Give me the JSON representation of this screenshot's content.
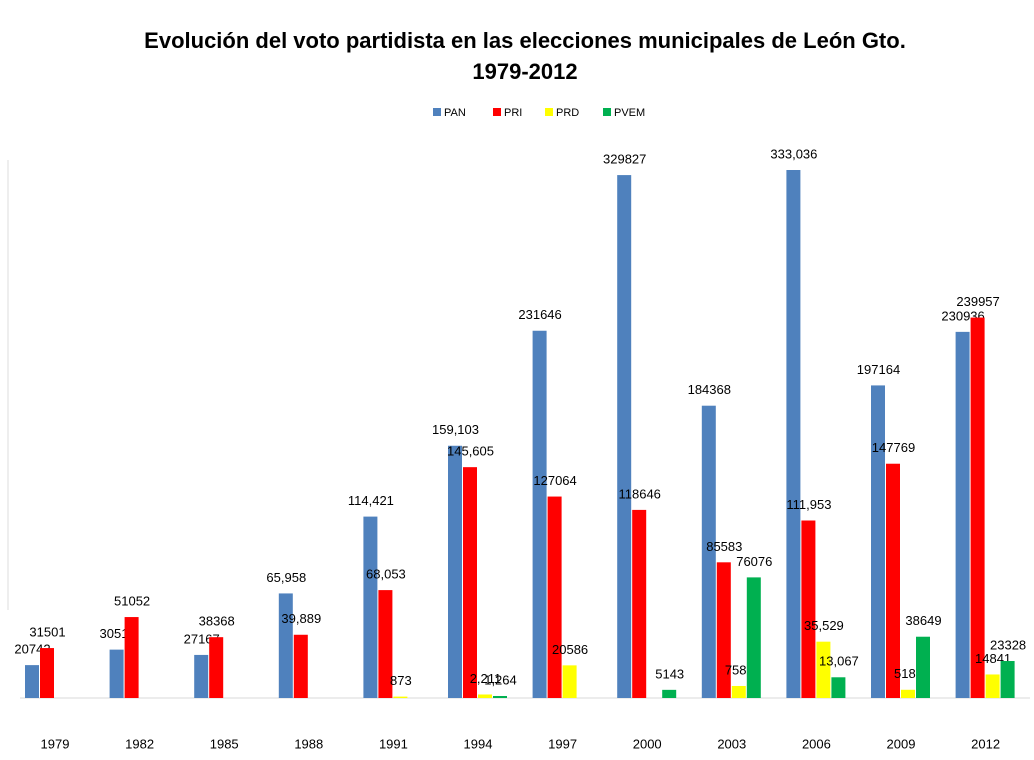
{
  "chart_data": {
    "type": "bar",
    "title": "Evolución del voto partidista en las elecciones municipales de León Gto.",
    "subtitle": "1979-2012",
    "categories": [
      "1979",
      "1982",
      "1985",
      "1988",
      "1991",
      "1994",
      "1997",
      "2000",
      "2003",
      "2006",
      "2009",
      "2012"
    ],
    "series": [
      {
        "name": "PAN",
        "color": "#4f81bd",
        "values": [
          20742,
          30511,
          27167,
          65958,
          114421,
          159103,
          231646,
          329827,
          184368,
          333036,
          197164,
          230936
        ],
        "value_labels": [
          "20742",
          "30511",
          "27167",
          "65,958",
          "114,421",
          "159,103",
          "231646",
          "329827",
          "184368",
          "333,036",
          "197164",
          "230936"
        ]
      },
      {
        "name": "PRI",
        "color": "#ff0000",
        "values": [
          31501,
          51052,
          38368,
          39889,
          68053,
          145605,
          127064,
          118646,
          85583,
          111953,
          147769,
          239957
        ],
        "value_labels": [
          "31501",
          "51052",
          "38368",
          "39,889",
          "68,053",
          "145,605",
          "127064",
          "118646",
          "85583",
          "111,953",
          "147769",
          "239957"
        ]
      },
      {
        "name": "PRD",
        "color": "#ffff00",
        "values": [
          null,
          null,
          null,
          null,
          873,
          2211,
          20586,
          null,
          7580,
          35529,
          5185,
          14841
        ],
        "value_labels": [
          null,
          null,
          null,
          null,
          "873",
          "2,211",
          "20586",
          null,
          "7580",
          "35,529",
          "5185",
          "14841"
        ]
      },
      {
        "name": "PVEM",
        "color": "#00b050",
        "values": [
          null,
          null,
          null,
          null,
          null,
          1264,
          null,
          5143,
          76076,
          13067,
          38649,
          23328
        ],
        "value_labels": [
          null,
          null,
          null,
          null,
          null,
          "1,264",
          null,
          "5143",
          "76076",
          "13,067",
          "38649",
          "23328"
        ]
      }
    ],
    "legend": "top"
  }
}
